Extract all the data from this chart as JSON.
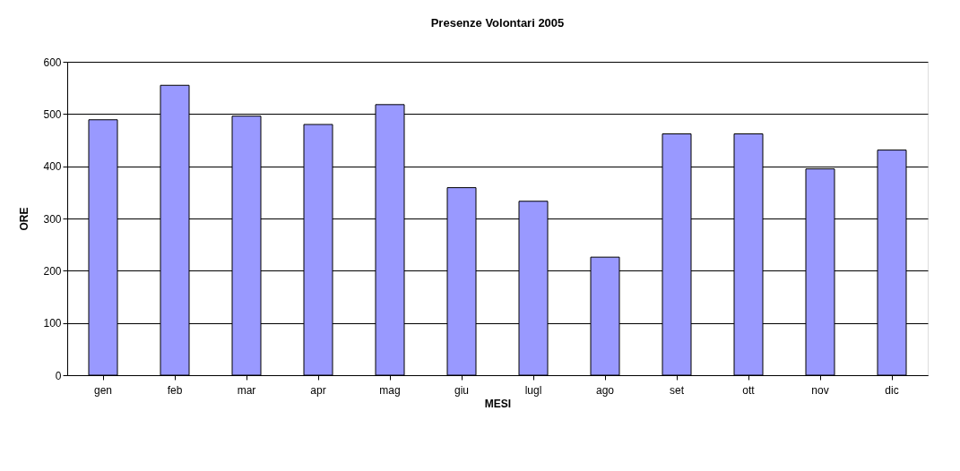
{
  "chart_data": {
    "type": "bar",
    "title": "Presenze Volontari 2005",
    "xlabel": "MESI",
    "ylabel": "ORE",
    "categories": [
      "gen",
      "feb",
      "mar",
      "apr",
      "mag",
      "giu",
      "lugl",
      "ago",
      "set",
      "ott",
      "nov",
      "dic"
    ],
    "series": [
      {
        "color": "#9999ff",
        "values": [
          489,
          555,
          496,
          480,
          518,
          359,
          333,
          226,
          462,
          462,
          395,
          431
        ]
      }
    ],
    "ylim": [
      0,
      600
    ],
    "yticks": [
      0,
      100,
      200,
      300,
      400,
      500,
      600
    ],
    "grid": "y",
    "legend": false
  }
}
